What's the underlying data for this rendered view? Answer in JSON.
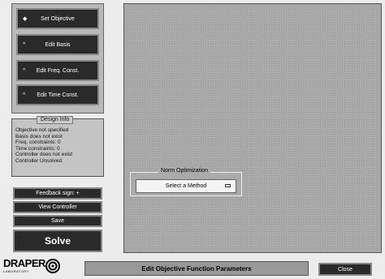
{
  "sidebar": {
    "buttons": [
      "Set Objective",
      "Edit Basis",
      "Edit Freq. Const.",
      "Edit Time Const."
    ]
  },
  "design_info": {
    "title": "Design Info",
    "lines": [
      "Objective not specified",
      "Basis does not exist",
      "Freq. constraints: 0",
      "Time constraints: 0",
      "Controller does not exist",
      "Controller Unsolved"
    ]
  },
  "actions": [
    "Feedback sign: +",
    "View Controller",
    "Save",
    "Solve"
  ],
  "norm_box": {
    "title": "Norm Optimization",
    "select": "Select a Method"
  },
  "footer": {
    "logo": "DRAPER",
    "logo_sub": "LABORATORY",
    "status": "Edit Objective Function Parameters",
    "close": "Close"
  }
}
